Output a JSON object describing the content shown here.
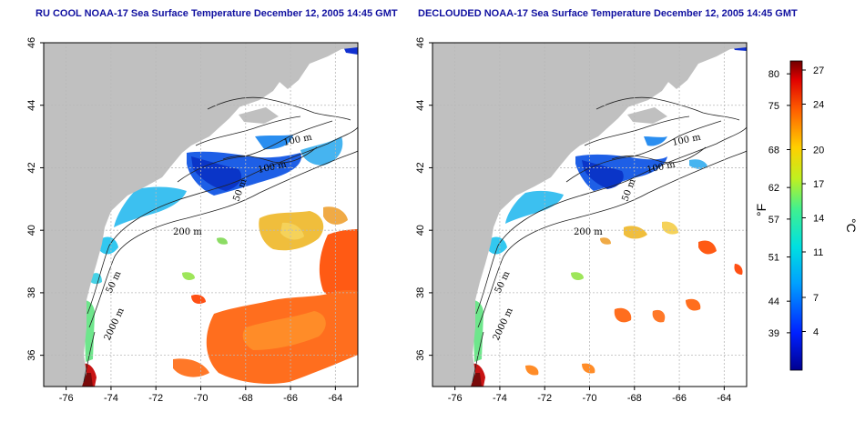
{
  "titles": {
    "left": "RU COOL NOAA-17 Sea Surface Temperature December 12, 2005 14:45 GMT",
    "right": "DECLOUDED NOAA-17 Sea Surface Temperature December 12, 2005 14:45 GMT"
  },
  "axes": {
    "x_ticks": [
      "-76",
      "-74",
      "-72",
      "-70",
      "-68",
      "-66",
      "-64"
    ],
    "y_ticks": [
      "36",
      "38",
      "40",
      "42",
      "44",
      "46"
    ]
  },
  "contour_labels": {
    "m100": "100 m",
    "m50": "50 m",
    "m200": "200 m",
    "m2000": "2000 m"
  },
  "colorbar": {
    "fahrenheit_ticks": [
      "80",
      "75",
      "68",
      "62",
      "57",
      "51",
      "44",
      "39"
    ],
    "celsius_ticks": [
      "27",
      "24",
      "20",
      "17",
      "14",
      "11",
      "7",
      "4"
    ],
    "fahrenheit_label": "°F",
    "celsius_label": "°C"
  },
  "colors": {
    "land": "#c0c0c0",
    "grid": "#b8b8b8",
    "cold": "#1e64e6",
    "cool": "#32c8f0",
    "mild": "#64e696",
    "warm": "#f0c832",
    "hot": "#ff6414",
    "very_hot": "#c81414"
  }
}
